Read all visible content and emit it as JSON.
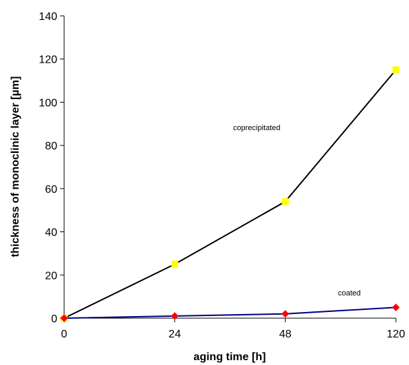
{
  "chart_data": {
    "type": "line",
    "title": "",
    "xlabel": "aging time [h]",
    "ylabel": "thickness of monoclinic layer [µm]",
    "categories": [
      "0",
      "24",
      "48",
      "120"
    ],
    "ylim": [
      0,
      140
    ],
    "yticks": [
      "0",
      "20",
      "40",
      "60",
      "80",
      "100",
      "120",
      "140"
    ],
    "grid": false,
    "series": [
      {
        "name": "coprecipitated",
        "values": [
          0,
          25,
          54,
          115
        ],
        "line_color": "#000000",
        "marker": "square",
        "marker_color": "#FFFF00"
      },
      {
        "name": "coated",
        "values": [
          0,
          1,
          2,
          5
        ],
        "line_color": "#000080",
        "marker": "diamond",
        "marker_color": "#FF0000"
      }
    ],
    "annotations": [
      {
        "text": "coprecipitated",
        "series": 0
      },
      {
        "text": "coated",
        "series": 1
      }
    ]
  }
}
